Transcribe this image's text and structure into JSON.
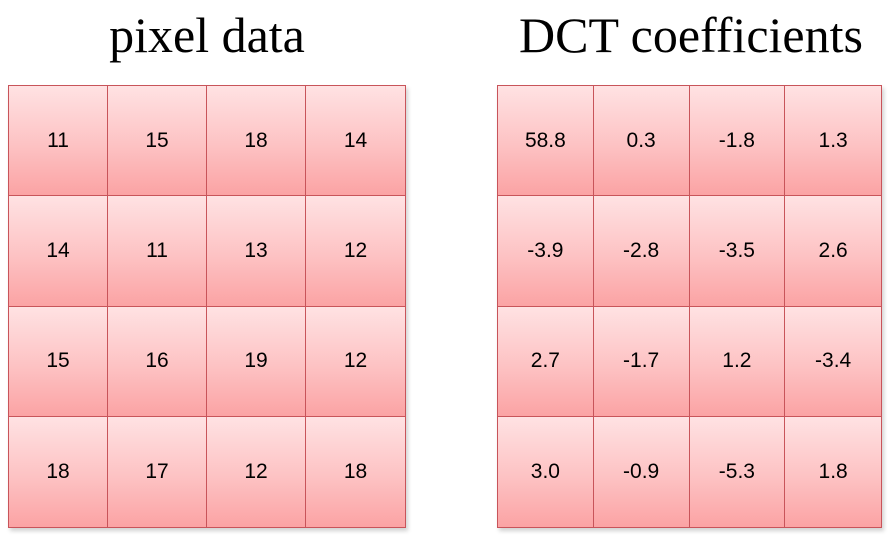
{
  "left": {
    "title": "pixel data",
    "rows": [
      [
        "11",
        "15",
        "18",
        "14"
      ],
      [
        "14",
        "11",
        "13",
        "12"
      ],
      [
        "15",
        "16",
        "19",
        "12"
      ],
      [
        "18",
        "17",
        "12",
        "18"
      ]
    ]
  },
  "right": {
    "title": "DCT coefficients",
    "rows": [
      [
        "58.8",
        "0.3",
        "-1.8",
        "1.3"
      ],
      [
        "-3.9",
        "-2.8",
        "-3.5",
        "2.6"
      ],
      [
        "2.7",
        "-1.7",
        "1.2",
        "-3.4"
      ],
      [
        "3.0",
        "-0.9",
        "-5.3",
        "1.8"
      ]
    ]
  },
  "colors": {
    "cell_top": "#ffe2e3",
    "cell_bottom": "#fba3a4",
    "grid_line": "#c8545a"
  }
}
